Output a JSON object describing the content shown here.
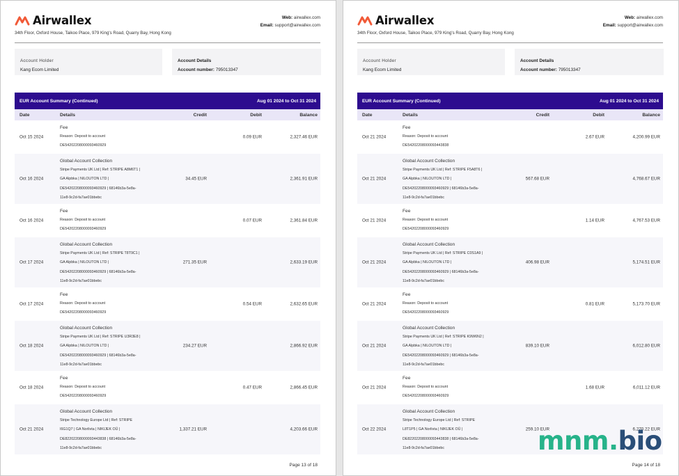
{
  "brand": {
    "name": "Airwallex",
    "accent": "#f15a38",
    "summary_color": "#2d0c8f"
  },
  "header": {
    "address": "34th Floor, Oxford House, Taikoo Place, 979 King's Road, Quarry Bay, Hong Kong",
    "web_label": "Web:",
    "web_value": "airwallex.com",
    "email_label": "Email:",
    "email_value": "support@airwallex.com"
  },
  "account": {
    "holder_label": "Account Holder",
    "holder_value": "Kang Ecom Limited",
    "details_label": "Account Details",
    "number_label": "Account number:",
    "number_value": "795013347"
  },
  "summary": {
    "title": "EUR Account Summary (Continued)",
    "period": "Aug 01 2024 to Oct 31 2024"
  },
  "columns": {
    "date": "Date",
    "details": "Details",
    "credit": "Credit",
    "debit": "Debit",
    "balance": "Balance"
  },
  "pages": [
    {
      "footer": "Page 13 of 18",
      "rows": [
        {
          "date": "Oct 15 2024",
          "title": "Fee",
          "lines": [
            "Reason: Deposit to account",
            "DE54202208000093460929"
          ],
          "credit": "",
          "debit": "0.09 EUR",
          "balance": "2,327.46 EUR"
        },
        {
          "date": "Oct 16 2024",
          "title": "Global Account Collection",
          "lines": [
            "Stripe Payments UK Ltd | Ref: STRIPE A8M6T1 |",
            "GA Alpbka | NILOUTON LTD |",
            "DE54202208000093460929 | 68146b3a-5e8a-",
            "11e8-9c2d-fa7ae01bbebc"
          ],
          "credit": "34.45 EUR",
          "debit": "",
          "balance": "2,361.91 EUR"
        },
        {
          "date": "Oct 16 2024",
          "title": "Fee",
          "lines": [
            "Reason: Deposit to account",
            "DE54202208000093460929"
          ],
          "credit": "",
          "debit": "0.07 EUR",
          "balance": "2,361.84 EUR"
        },
        {
          "date": "Oct 17 2024",
          "title": "Global Account Collection",
          "lines": [
            "Stripe Payments UK Ltd | Ref: STRIPE T8T9C1 |",
            "GA Alpbka | NILOUTON LTD |",
            "DE54202208000093460929 | 68146b3a-5e8a-",
            "11e8-9c2d-fa7ae01bbebc"
          ],
          "credit": "271.35 EUR",
          "debit": "",
          "balance": "2,633.19 EUR"
        },
        {
          "date": "Oct 17 2024",
          "title": "Fee",
          "lines": [
            "Reason: Deposit to account",
            "DE54202208000093460929"
          ],
          "credit": "",
          "debit": "0.54 EUR",
          "balance": "2,632.65 EUR"
        },
        {
          "date": "Oct 18 2024",
          "title": "Global Account Collection",
          "lines": [
            "Stripe Payments UK Ltd | Ref: STRIPE U3R3E8 |",
            "GA Alpbka | NILOUTON LTD |",
            "DE54202208000093460929 | 68146b3a-5e8a-",
            "11e8-9c2d-fa7ae01bbebc"
          ],
          "credit": "234.27 EUR",
          "debit": "",
          "balance": "2,866.92 EUR"
        },
        {
          "date": "Oct 18 2024",
          "title": "Fee",
          "lines": [
            "Reason: Deposit to account",
            "DE54202208000093460929"
          ],
          "credit": "",
          "debit": "0.47 EUR",
          "balance": "2,866.45 EUR"
        },
        {
          "date": "Oct 21 2024",
          "title": "Global Account Collection",
          "lines": [
            "Stripe Technology Europe Ltd | Ref: STRIPE",
            "I6G1Q7 | GA Norlivta | NIKIJEK OÜ |",
            "DE82202208000093443838 | 68146b3a-5e8a-",
            "11e8-9c2d-fa7ae01bbebc"
          ],
          "credit": "1,337.21 EUR",
          "debit": "",
          "balance": "4,203.66 EUR"
        }
      ]
    },
    {
      "footer": "Page 14 of 18",
      "rows": [
        {
          "date": "Oct 21 2024",
          "title": "Fee",
          "lines": [
            "Reason: Deposit to account",
            "DE54202208000093443838"
          ],
          "credit": "",
          "debit": "2.67 EUR",
          "balance": "4,200.99 EUR"
        },
        {
          "date": "Oct 21 2024",
          "title": "Global Account Collection",
          "lines": [
            "Stripe Payments UK Ltd | Ref: STRIPE F5A8T6 |",
            "GA Alpbka | NILOUTON LTD |",
            "DE54202208000093460929 | 68146b3a-5e8a-",
            "11e8-9c2d-fa7ae01bbebc"
          ],
          "credit": "567.68 EUR",
          "debit": "",
          "balance": "4,768.67 EUR"
        },
        {
          "date": "Oct 21 2024",
          "title": "Fee",
          "lines": [
            "Reason: Deposit to account",
            "DE54202208000093460929"
          ],
          "credit": "",
          "debit": "1.14 EUR",
          "balance": "4,767.53 EUR"
        },
        {
          "date": "Oct 21 2024",
          "title": "Global Account Collection",
          "lines": [
            "Stripe Payments UK Ltd | Ref: STRIPE C0S1A9 |",
            "GA Alpbka | NILOUTON LTD |",
            "DE54202208000093460929 | 68146b3a-5e8a-",
            "11e8-9c2d-fa7ae01bbebc"
          ],
          "credit": "406.98 EUR",
          "debit": "",
          "balance": "5,174.51 EUR"
        },
        {
          "date": "Oct 21 2024",
          "title": "Fee",
          "lines": [
            "Reason: Deposit to account",
            "DE54202208000093460929"
          ],
          "credit": "",
          "debit": "0.81 EUR",
          "balance": "5,173.70 EUR"
        },
        {
          "date": "Oct 21 2024",
          "title": "Global Account Collection",
          "lines": [
            "Stripe Payments UK Ltd | Ref: STRIPE K9W6N2 |",
            "GA Alpbka | NILOUTON LTD |",
            "DE54202208000093460929 | 68146b3a-5e8a-",
            "11e8-9c2d-fa7ae01bbebc"
          ],
          "credit": "839.10 EUR",
          "debit": "",
          "balance": "6,012.80 EUR"
        },
        {
          "date": "Oct 21 2024",
          "title": "Fee",
          "lines": [
            "Reason: Deposit to account",
            "DE54202208000093460929"
          ],
          "credit": "",
          "debit": "1.68 EUR",
          "balance": "6,011.12 EUR"
        },
        {
          "date": "Oct 22 2024",
          "title": "Global Account Collection",
          "lines": [
            "Stripe Technology Europe Ltd | Ref: STRIPE",
            "L8T1P5 | GA Norlivta | NIKIJEK OÜ |",
            "DE82202208000093443838 | 68146b3a-5e8a-",
            "11e8-9c2d-fa7ae01bbebc"
          ],
          "credit": "259.10 EUR",
          "debit": "",
          "balance": "6,270.22 EUR"
        }
      ]
    }
  ],
  "watermark": {
    "part1": "mnm.",
    "part2": "bio"
  }
}
